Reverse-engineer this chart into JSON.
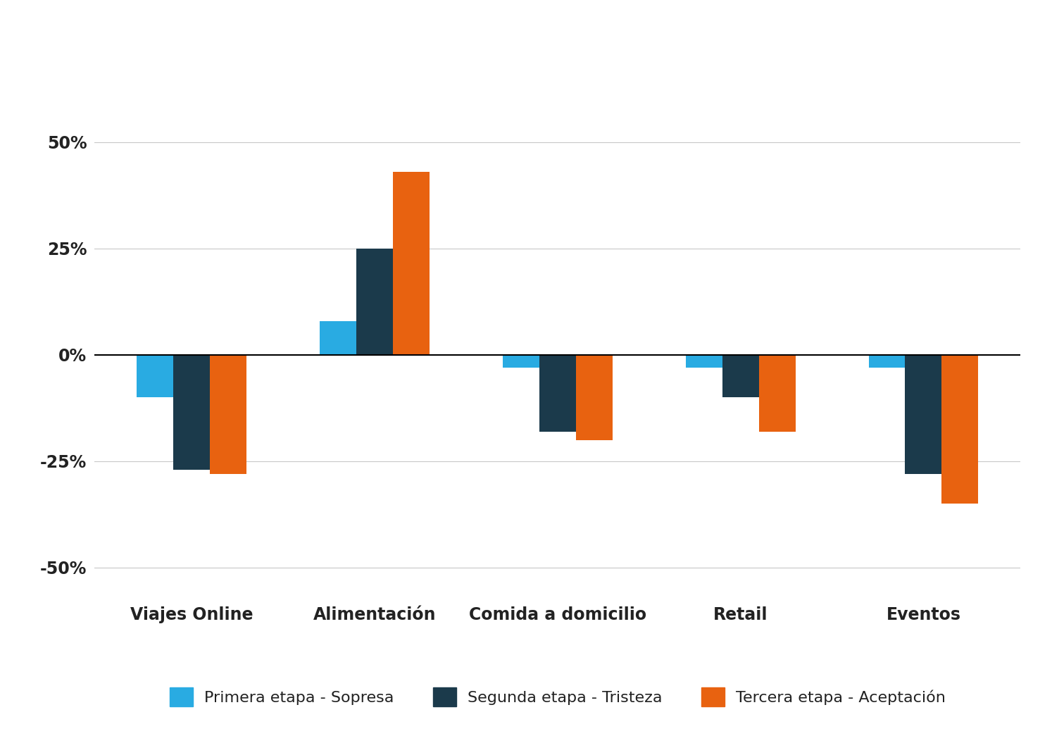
{
  "categories": [
    "Viajes Online",
    "Alimentación",
    "Comida a domicilio",
    "Retail",
    "Eventos"
  ],
  "series": {
    "Primera etapa - Sopresa": [
      -10,
      8,
      -3,
      -3,
      -3
    ],
    "Segunda etapa - Tristeza": [
      -27,
      25,
      -18,
      -10,
      -28
    ],
    "Tercera etapa - Aceptación": [
      -28,
      43,
      -20,
      -18,
      -35
    ]
  },
  "colors": {
    "Primera etapa - Sopresa": "#29ABE2",
    "Segunda etapa - Tristeza": "#1B3A4B",
    "Tercera etapa - Aceptación": "#E86210"
  },
  "ylim": [
    -55,
    55
  ],
  "yticks": [
    -50,
    -25,
    0,
    25,
    50
  ],
  "ytick_labels": [
    "-50%",
    "-25%",
    "0%",
    "25%",
    "50%"
  ],
  "background_color": "#FFFFFF",
  "grid_color": "#C8C8C8",
  "bar_width": 0.2,
  "legend_labels": [
    "Primera etapa - Sopresa",
    "Segunda etapa - Tristeza",
    "Tercera etapa - Aceptación"
  ]
}
